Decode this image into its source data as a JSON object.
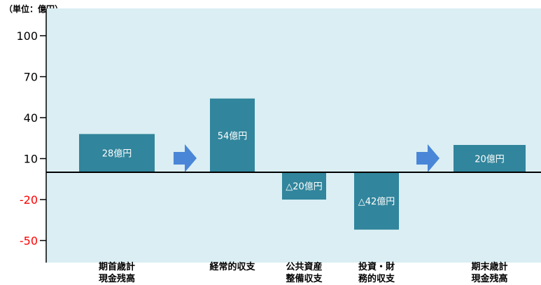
{
  "chart_data": {
    "type": "bar",
    "unit_label": "（単位：億円）",
    "yticks": [
      100,
      70,
      40,
      10,
      -20,
      -50
    ],
    "ylim": [
      -63,
      110
    ],
    "grid": false,
    "categories": [
      "期首歳計\n現金残高",
      "経常的収支",
      "公共資産\n整備収支",
      "投資・財\n務的収支",
      "期末歳計\n現金残高"
    ],
    "values": [
      28,
      54,
      -20,
      -42,
      20
    ],
    "data_labels": [
      "28億円",
      "54億円",
      "△20億円",
      "△42億円",
      "20億円"
    ],
    "arrows_after": [
      0,
      3
    ]
  },
  "colors": {
    "plot_background": "#daeef3",
    "bar": "#31859c",
    "arrow": "#4a86d8",
    "negative_tick": "#ff0000",
    "positive_tick": "#000000"
  }
}
